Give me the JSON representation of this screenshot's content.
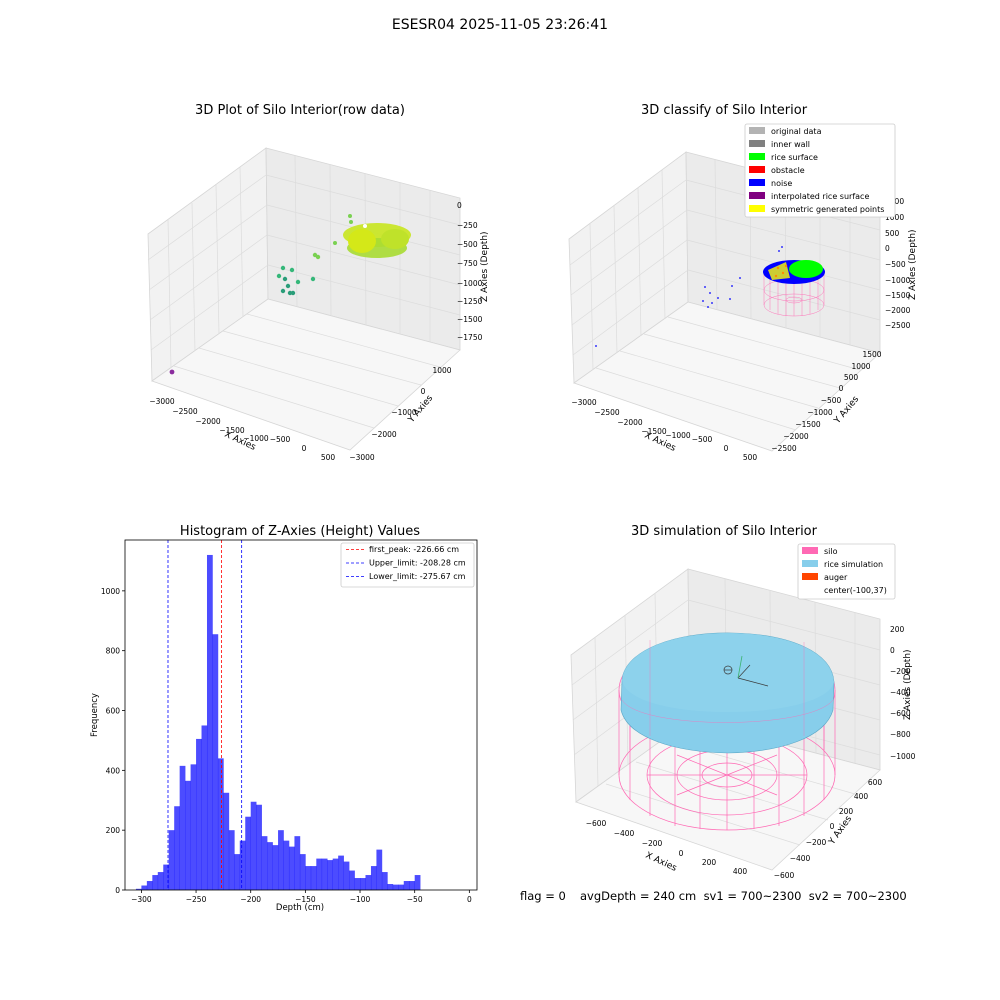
{
  "suptitle": "ESESR04 2025-11-05 23:26:41",
  "panel1": {
    "title": "3D Plot of Silo Interior(row data)",
    "xlabel": "X Axies",
    "ylabel": "Y Axies",
    "zlabel": "Z Axies (Depth)",
    "xticks": [
      "−3000",
      "−2500",
      "−2000",
      "−1500",
      "−1000",
      "−500",
      "0",
      "500"
    ],
    "yticks": [
      "1000",
      "0",
      "−1000",
      "−2000",
      "−3000"
    ],
    "zticks": [
      "0",
      "−250",
      "−500",
      "−750",
      "−1000",
      "−1250",
      "−1500",
      "−1750"
    ]
  },
  "panel2": {
    "title": "3D classify of Silo Interior",
    "xlabel": "X Axies",
    "ylabel": "Y Axies",
    "zlabel": "Z Axies (Depth)",
    "xticks": [
      "−3000",
      "−2500",
      "−2000",
      "−1500",
      "−1000",
      "−500",
      "0",
      "500"
    ],
    "yticks": [
      "1500",
      "1000",
      "500",
      "0",
      "−500",
      "−1000",
      "−1500",
      "−2000",
      "−2500"
    ],
    "zticks": [
      "1500",
      "1000",
      "500",
      "0",
      "−500",
      "−1000",
      "−1500",
      "−2000",
      "−2500"
    ],
    "legend": [
      {
        "label": "original data",
        "color": "#b3b3b3"
      },
      {
        "label": "inner wall",
        "color": "#808080"
      },
      {
        "label": "rice surface",
        "color": "#00ff00"
      },
      {
        "label": "obstacle",
        "color": "#ff0000"
      },
      {
        "label": "noise",
        "color": "#0000ff"
      },
      {
        "label": "interpolated rice surface",
        "color": "#800080"
      },
      {
        "label": "symmetric generated points",
        "color": "#ffff00"
      }
    ]
  },
  "panel4": {
    "title": "3D simulation of Silo Interior",
    "xlabel": "X Axies",
    "ylabel": "Y Axies",
    "zlabel": "Z Axies (Depth)",
    "xticks": [
      "−600",
      "−400",
      "−200",
      "0",
      "200",
      "400"
    ],
    "yticks": [
      "600",
      "400",
      "200",
      "0",
      "−200",
      "−400",
      "−600"
    ],
    "zticks": [
      "200",
      "0",
      "−200",
      "−400",
      "−600",
      "−800",
      "−1000"
    ],
    "legend": [
      {
        "label": "silo",
        "color": "#ff69b4"
      },
      {
        "label": "rice simulation",
        "color": "#87ceeb"
      },
      {
        "label": "auger",
        "color": "#ff4500"
      },
      {
        "label": "center(-100,37)",
        "color": ""
      }
    ]
  },
  "footer": {
    "flag": "flag = 0",
    "stats": "avgDepth = 240 cm  sv1 = 700~2300  sv2 = 700~2300"
  },
  "chart_data": [
    {
      "type": "histogram",
      "title": "Histogram of Z-Axies (Height) Values",
      "xlabel": "Depth (cm)",
      "ylabel": "Frequency",
      "xlim": [
        -315,
        7
      ],
      "ylim": [
        0,
        1170
      ],
      "xticks": [
        -300,
        -250,
        -200,
        -150,
        -100,
        -50,
        0
      ],
      "yticks": [
        0,
        200,
        400,
        600,
        800,
        1000
      ],
      "bin_width": 5,
      "bins_start": [
        -305,
        -300,
        -295,
        -290,
        -285,
        -280,
        -275,
        -270,
        -265,
        -260,
        -255,
        -250,
        -245,
        -240,
        -235,
        -230,
        -225,
        -220,
        -215,
        -210,
        -205,
        -200,
        -195,
        -190,
        -185,
        -180,
        -175,
        -170,
        -165,
        -160,
        -155,
        -150,
        -145,
        -140,
        -135,
        -130,
        -125,
        -120,
        -115,
        -110,
        -105,
        -100,
        -95,
        -90,
        -85,
        -80,
        -75,
        -70,
        -65,
        -60,
        -55,
        -50,
        -45,
        -40,
        -35,
        -30,
        -25,
        -20,
        -15,
        -10,
        -5
      ],
      "values": [
        4,
        15,
        30,
        50,
        60,
        85,
        200,
        280,
        415,
        365,
        420,
        505,
        550,
        1120,
        855,
        440,
        325,
        200,
        120,
        165,
        245,
        295,
        285,
        180,
        160,
        150,
        200,
        165,
        145,
        180,
        120,
        80,
        80,
        105,
        105,
        100,
        105,
        115,
        95,
        65,
        40,
        40,
        50,
        80,
        135,
        60,
        20,
        18,
        18,
        30,
        30,
        50,
        0,
        0,
        0,
        0,
        0,
        0,
        0,
        0,
        0
      ],
      "bar_color": "#0000ff",
      "lines": [
        {
          "label": "first_peak: -226.66 cm",
          "x": -226.66,
          "color": "#ff0000"
        },
        {
          "label": "Upper_limit: -208.28 cm",
          "x": -208.28,
          "color": "#0000ff"
        },
        {
          "label": "Lower_limit: -275.67 cm",
          "x": -275.67,
          "color": "#0000ff"
        }
      ],
      "legend_position": "upper right",
      "grid": false
    }
  ]
}
